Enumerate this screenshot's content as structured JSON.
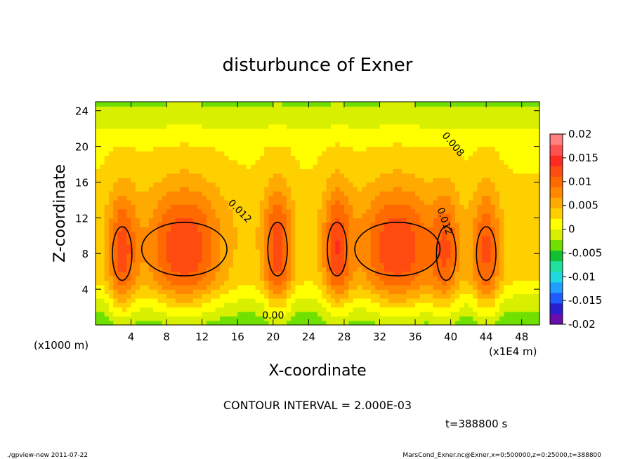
{
  "chart_data": {
    "type": "heatmap",
    "title": "disturbunce of Exner",
    "xlabel": "X-coordinate",
    "ylabel": "Z-coordinate",
    "x_unit_label": "(x1000 m)",
    "x_scale_label": "(x1E4 m)",
    "xlim": [
      0,
      50
    ],
    "ylim": [
      0,
      25
    ],
    "x_ticks": [
      4,
      8,
      12,
      16,
      20,
      24,
      28,
      32,
      36,
      40,
      44,
      48
    ],
    "y_ticks": [
      4,
      8,
      12,
      16,
      20,
      24
    ],
    "colorbar": {
      "levels": [
        -0.02,
        -0.015,
        -0.01,
        -0.005,
        0,
        0.005,
        0.01,
        0.015,
        0.02
      ],
      "labels": [
        "-0.02",
        "-0.015",
        "-0.01",
        "-0.005",
        "0",
        "0.005",
        "0.01",
        "0.015",
        "0.02"
      ],
      "colors": [
        "#6a0dad",
        "#2a1fd0",
        "#1f5cff",
        "#1fa0ff",
        "#20d8e0",
        "#20e0a0",
        "#10c030",
        "#70e000",
        "#d8f000",
        "#ffff00",
        "#ffd000",
        "#ffaa00",
        "#ff8800",
        "#ff6a00",
        "#ff4a10",
        "#ff2a20",
        "#ff5050",
        "#ff8080"
      ]
    },
    "contour_labels": [
      "0.008",
      "0.012",
      "0.012",
      "0.00"
    ],
    "contour_interval": "CONTOUR INTERVAL = 2.000E-03",
    "time": "t=388800 s",
    "peaks": [
      {
        "x": 3,
        "z": 8,
        "value": 0.013
      },
      {
        "x": 10,
        "z": 8.5,
        "value": 0.0145
      },
      {
        "x": 20.5,
        "z": 8.5,
        "value": 0.0142
      },
      {
        "x": 27.2,
        "z": 8.5,
        "value": 0.0138
      },
      {
        "x": 34,
        "z": 8.5,
        "value": 0.0145
      },
      {
        "x": 39.5,
        "z": 8,
        "value": 0.011
      },
      {
        "x": 44,
        "z": 8,
        "value": 0.013
      }
    ]
  },
  "footer": {
    "left": "./gpview-new   2011-07-22",
    "right": "MarsCond_Exner.nc@Exner,x=0:500000,z=0:25000,t=388800"
  }
}
